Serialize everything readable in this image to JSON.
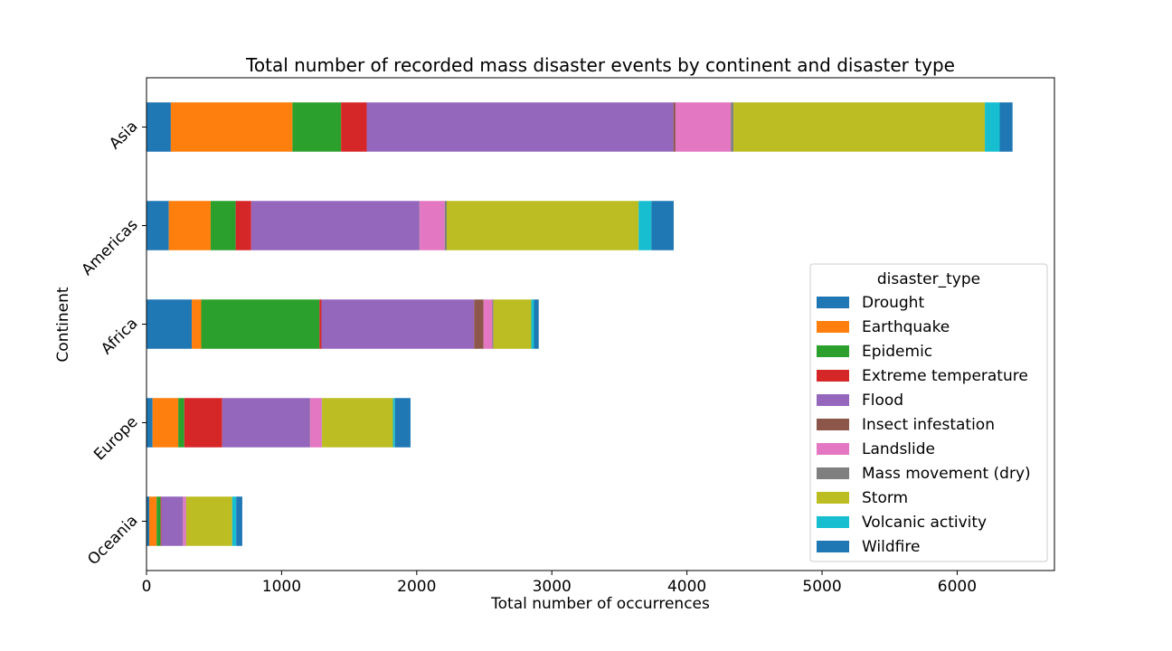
{
  "chart_data": {
    "type": "bar",
    "orientation": "horizontal",
    "stacked": true,
    "title": "Total number of recorded mass disaster events by continent and disaster type",
    "xlabel": "Total number of occurrences",
    "ylabel": "Continent",
    "xlim": [
      0,
      6720
    ],
    "xticks": [
      0,
      1000,
      2000,
      3000,
      4000,
      5000,
      6000
    ],
    "categories": [
      "Oceania",
      "Europe",
      "Africa",
      "Americas",
      "Asia"
    ],
    "legend": {
      "title": "disaster_type",
      "placement": "center-right"
    },
    "series": [
      {
        "name": "Drought",
        "color": "#1f77b4",
        "values": [
          20,
          45,
          335,
          165,
          180
        ]
      },
      {
        "name": "Earthquake",
        "color": "#ff7f0e",
        "values": [
          55,
          190,
          70,
          310,
          900
        ]
      },
      {
        "name": "Epidemic",
        "color": "#2ca02c",
        "values": [
          30,
          45,
          875,
          185,
          360
        ]
      },
      {
        "name": "Extreme temperature",
        "color": "#d62728",
        "values": [
          5,
          280,
          15,
          115,
          190
        ]
      },
      {
        "name": "Flood",
        "color": "#9467bd",
        "values": [
          160,
          650,
          1130,
          1245,
          2270
        ]
      },
      {
        "name": "Insect infestation",
        "color": "#8c564b",
        "values": [
          2,
          2,
          70,
          2,
          15
        ]
      },
      {
        "name": "Landslide",
        "color": "#e377c2",
        "values": [
          20,
          85,
          65,
          185,
          410
        ]
      },
      {
        "name": "Mass movement (dry)",
        "color": "#7f7f7f",
        "values": [
          2,
          2,
          8,
          15,
          20
        ]
      },
      {
        "name": "Storm",
        "color": "#bcbd22",
        "values": [
          340,
          525,
          280,
          1420,
          1860
        ]
      },
      {
        "name": "Volcanic activity",
        "color": "#17becf",
        "values": [
          30,
          15,
          20,
          95,
          110
        ]
      },
      {
        "name": "Wildfire",
        "color": "#1f77b4",
        "values": [
          45,
          115,
          35,
          165,
          95
        ]
      }
    ]
  }
}
